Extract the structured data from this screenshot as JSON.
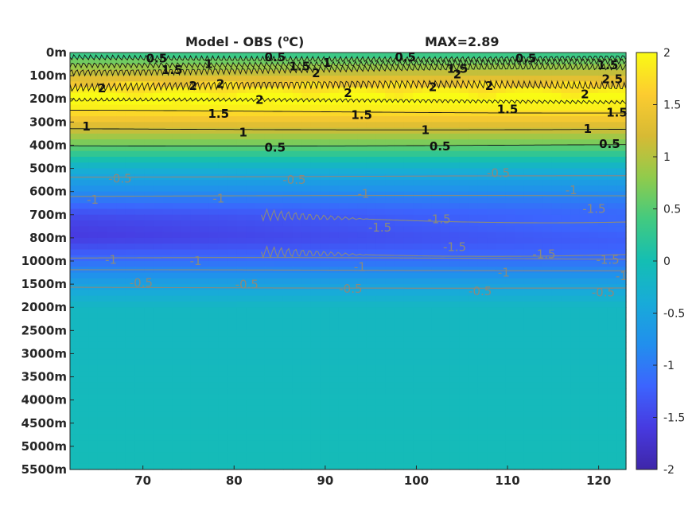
{
  "chart_data": {
    "type": "heatmap",
    "title": "Model - OBS (",
    "title_sup": "o",
    "title_unit": "C)",
    "annotation": "MAX=2.89",
    "colormap": "parula",
    "clim": [
      -2,
      2
    ],
    "xlim": [
      62,
      123
    ],
    "x_ticks": [
      70,
      80,
      90,
      100,
      110,
      120
    ],
    "x_tick_labels": [
      "70",
      "80",
      "90",
      "100",
      "110",
      "120"
    ],
    "y_ticks": [
      "0m",
      "100m",
      "200m",
      "300m",
      "400m",
      "500m",
      "600m",
      "700m",
      "800m",
      "1000m",
      "1500m",
      "2000m",
      "2500m",
      "3000m",
      "3500m",
      "4000m",
      "4500m",
      "5000m",
      "5500m"
    ],
    "colorbar_ticks": [
      2,
      1.5,
      1,
      0.5,
      0,
      -0.5,
      -1,
      -1.5,
      -2
    ],
    "colorbar_tick_labels": [
      "2",
      "1.5",
      "1",
      "0.5",
      "0",
      "-0.5",
      "-1",
      "-1.5",
      "-2"
    ],
    "contour_levels": [
      -1.5,
      -1,
      -0.5,
      0.5,
      1,
      1.5,
      2,
      2.5
    ],
    "profile_depth_levels": [
      0,
      1,
      2,
      3,
      4,
      5,
      6,
      7,
      8,
      9,
      10,
      11,
      18
    ],
    "profile_values": [
      0.3,
      1.2,
      2.2,
      1.4,
      0.6,
      -0.3,
      -0.8,
      -1.35,
      -1.5,
      -1.1,
      -0.55,
      -0.15,
      -0.05
    ],
    "contour_labels": [
      {
        "text": "0.5",
        "x": 71.5,
        "d": 0.25,
        "k": "b"
      },
      {
        "text": "1.5",
        "x": 73.2,
        "d": 0.75,
        "k": "b"
      },
      {
        "text": "1",
        "x": 77.2,
        "d": 0.5,
        "k": "b"
      },
      {
        "text": "0.5",
        "x": 84.5,
        "d": 0.2,
        "k": "b"
      },
      {
        "text": "1.5",
        "x": 87.2,
        "d": 0.6,
        "k": "b"
      },
      {
        "text": "1",
        "x": 90.2,
        "d": 0.45,
        "k": "b"
      },
      {
        "text": "2",
        "x": 89.0,
        "d": 0.9,
        "k": "b"
      },
      {
        "text": "0.5",
        "x": 98.8,
        "d": 0.2,
        "k": "b"
      },
      {
        "text": "1.5",
        "x": 104.5,
        "d": 0.7,
        "k": "b"
      },
      {
        "text": "2",
        "x": 104.5,
        "d": 0.95,
        "k": "b"
      },
      {
        "text": "0.5",
        "x": 112.0,
        "d": 0.25,
        "k": "b"
      },
      {
        "text": "1.5",
        "x": 121.0,
        "d": 0.55,
        "k": "b"
      },
      {
        "text": "2.5",
        "x": 121.5,
        "d": 1.15,
        "k": "b"
      },
      {
        "text": "2",
        "x": 65.5,
        "d": 1.55,
        "k": "b"
      },
      {
        "text": "2",
        "x": 75.5,
        "d": 1.45,
        "k": "b"
      },
      {
        "text": "2",
        "x": 78.5,
        "d": 1.35,
        "k": "b"
      },
      {
        "text": "2",
        "x": 82.8,
        "d": 2.05,
        "k": "b"
      },
      {
        "text": "2",
        "x": 92.5,
        "d": 1.75,
        "k": "b"
      },
      {
        "text": "2",
        "x": 101.8,
        "d": 1.5,
        "k": "b"
      },
      {
        "text": "2",
        "x": 108.0,
        "d": 1.45,
        "k": "b"
      },
      {
        "text": "2",
        "x": 118.5,
        "d": 1.8,
        "k": "b"
      },
      {
        "text": "1.5",
        "x": 78.3,
        "d": 2.65,
        "k": "b"
      },
      {
        "text": "1.5",
        "x": 94.0,
        "d": 2.7,
        "k": "b"
      },
      {
        "text": "1.5",
        "x": 110.0,
        "d": 2.45,
        "k": "b"
      },
      {
        "text": "1.5",
        "x": 122.0,
        "d": 2.6,
        "k": "b"
      },
      {
        "text": "1",
        "x": 63.8,
        "d": 3.2,
        "k": "b"
      },
      {
        "text": "1",
        "x": 81.0,
        "d": 3.45,
        "k": "b"
      },
      {
        "text": "1",
        "x": 101.0,
        "d": 3.35,
        "k": "b"
      },
      {
        "text": "1",
        "x": 118.8,
        "d": 3.3,
        "k": "b"
      },
      {
        "text": "0.5",
        "x": 84.5,
        "d": 4.1,
        "k": "b"
      },
      {
        "text": "0.5",
        "x": 102.6,
        "d": 4.05,
        "k": "b"
      },
      {
        "text": "0.5",
        "x": 121.2,
        "d": 3.95,
        "k": "b"
      },
      {
        "text": "-0.5",
        "x": 67.5,
        "d": 5.45,
        "k": "g"
      },
      {
        "text": "-0.5",
        "x": 86.6,
        "d": 5.5,
        "k": "g"
      },
      {
        "text": "-0.5",
        "x": 109.0,
        "d": 5.2,
        "k": "g"
      },
      {
        "text": "-1",
        "x": 64.5,
        "d": 6.35,
        "k": "g"
      },
      {
        "text": "-1",
        "x": 78.3,
        "d": 6.3,
        "k": "g"
      },
      {
        "text": "-1",
        "x": 94.2,
        "d": 6.1,
        "k": "g"
      },
      {
        "text": "-1",
        "x": 117.0,
        "d": 5.95,
        "k": "g"
      },
      {
        "text": "-1.5",
        "x": 119.5,
        "d": 6.75,
        "k": "g"
      },
      {
        "text": "-1.5",
        "x": 96.0,
        "d": 7.55,
        "k": "g"
      },
      {
        "text": "-1.5",
        "x": 102.5,
        "d": 7.2,
        "k": "g"
      },
      {
        "text": "-1.5",
        "x": 104.2,
        "d": 8.4,
        "k": "g"
      },
      {
        "text": "-1.5",
        "x": 114.0,
        "d": 8.7,
        "k": "g"
      },
      {
        "text": "-1.5",
        "x": 121.0,
        "d": 8.95,
        "k": "g"
      },
      {
        "text": "-1",
        "x": 66.5,
        "d": 8.95,
        "k": "g"
      },
      {
        "text": "-1",
        "x": 75.8,
        "d": 9.0,
        "k": "g"
      },
      {
        "text": "-1",
        "x": 93.8,
        "d": 9.25,
        "k": "g"
      },
      {
        "text": "-1",
        "x": 109.6,
        "d": 9.5,
        "k": "g"
      },
      {
        "text": "-1",
        "x": 122.5,
        "d": 9.65,
        "k": "g"
      },
      {
        "text": "-0.5",
        "x": 69.8,
        "d": 9.95,
        "k": "g"
      },
      {
        "text": "-0.5",
        "x": 81.4,
        "d": 10.02,
        "k": "g"
      },
      {
        "text": "-0.5",
        "x": 92.8,
        "d": 10.2,
        "k": "g"
      },
      {
        "text": "-0.5",
        "x": 107.0,
        "d": 10.3,
        "k": "g"
      },
      {
        "text": "-0.5",
        "x": 120.5,
        "d": 10.35,
        "k": "g"
      }
    ]
  }
}
